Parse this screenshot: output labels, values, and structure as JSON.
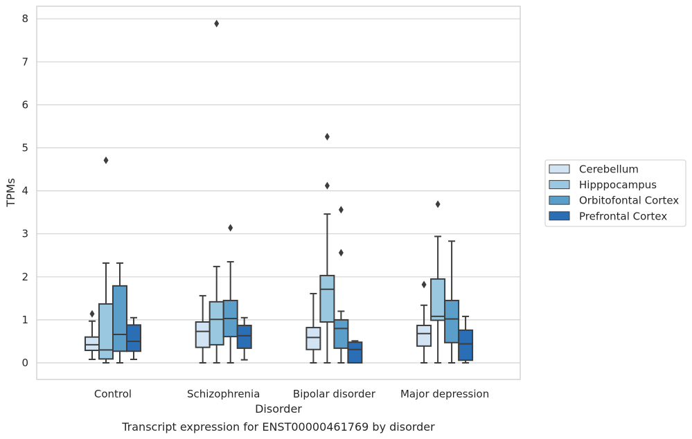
{
  "chart_data": {
    "type": "boxplot",
    "title": "",
    "caption": "Transcript expression for ENST00000461769 by disorder",
    "xlabel": "Disorder",
    "ylabel": "TPMs",
    "ylim": [
      -0.38,
      8.3
    ],
    "yticks": [
      "0",
      "1",
      "2",
      "3",
      "4",
      "5",
      "6",
      "7",
      "8"
    ],
    "grid": "horizontal",
    "legend_position": "right",
    "categories": [
      "Control",
      "Schizophrenia",
      "Bipolar disorder",
      "Major depression"
    ],
    "series": [
      {
        "name": "Cerebellum",
        "color": "#d2e3f3",
        "boxes": [
          {
            "whisker_low": 0.08,
            "q1": 0.29,
            "median": 0.42,
            "q3": 0.6,
            "whisker_high": 0.97,
            "outliers": [
              1.14
            ]
          },
          {
            "whisker_low": 0.0,
            "q1": 0.36,
            "median": 0.73,
            "q3": 0.95,
            "whisker_high": 1.56,
            "outliers": []
          },
          {
            "whisker_low": 0.0,
            "q1": 0.31,
            "median": 0.59,
            "q3": 0.82,
            "whisker_high": 1.61,
            "outliers": []
          },
          {
            "whisker_low": 0.0,
            "q1": 0.39,
            "median": 0.68,
            "q3": 0.87,
            "whisker_high": 1.34,
            "outliers": [
              1.82
            ]
          }
        ]
      },
      {
        "name": "Hipppocampus",
        "color": "#9ac8e0",
        "boxes": [
          {
            "whisker_low": 0.0,
            "q1": 0.09,
            "median": 0.3,
            "q3": 1.37,
            "whisker_high": 2.32,
            "outliers": [
              4.71
            ]
          },
          {
            "whisker_low": 0.0,
            "q1": 0.42,
            "median": 1.01,
            "q3": 1.42,
            "whisker_high": 2.24,
            "outliers": [
              7.89
            ]
          },
          {
            "whisker_low": 0.0,
            "q1": 0.95,
            "median": 1.71,
            "q3": 2.03,
            "whisker_high": 3.46,
            "outliers": [
              4.12,
              5.26
            ]
          },
          {
            "whisker_low": 0.0,
            "q1": 0.99,
            "median": 1.08,
            "q3": 1.95,
            "whisker_high": 2.94,
            "outliers": [
              3.69
            ]
          }
        ]
      },
      {
        "name": "Orbitofontal Cortex",
        "color": "#5a9ec9",
        "boxes": [
          {
            "whisker_low": 0.0,
            "q1": 0.27,
            "median": 0.66,
            "q3": 1.79,
            "whisker_high": 2.32,
            "outliers": []
          },
          {
            "whisker_low": 0.0,
            "q1": 0.61,
            "median": 1.03,
            "q3": 1.45,
            "whisker_high": 2.35,
            "outliers": [
              3.14
            ]
          },
          {
            "whisker_low": 0.0,
            "q1": 0.34,
            "median": 0.8,
            "q3": 1.0,
            "whisker_high": 1.2,
            "outliers": [
              2.56,
              3.56
            ]
          },
          {
            "whisker_low": 0.0,
            "q1": 0.47,
            "median": 1.02,
            "q3": 1.45,
            "whisker_high": 2.83,
            "outliers": []
          }
        ]
      },
      {
        "name": "Prefrontal Cortex",
        "color": "#2a6eb5",
        "boxes": [
          {
            "whisker_low": 0.08,
            "q1": 0.27,
            "median": 0.5,
            "q3": 0.88,
            "whisker_high": 1.05,
            "outliers": []
          },
          {
            "whisker_low": 0.07,
            "q1": 0.34,
            "median": 0.63,
            "q3": 0.87,
            "whisker_high": 1.05,
            "outliers": []
          },
          {
            "whisker_low": 0.0,
            "q1": 0.0,
            "median": 0.31,
            "q3": 0.48,
            "whisker_high": 0.51,
            "outliers": []
          },
          {
            "whisker_low": 0.0,
            "q1": 0.06,
            "median": 0.44,
            "q3": 0.76,
            "whisker_high": 1.08,
            "outliers": []
          }
        ]
      }
    ]
  }
}
